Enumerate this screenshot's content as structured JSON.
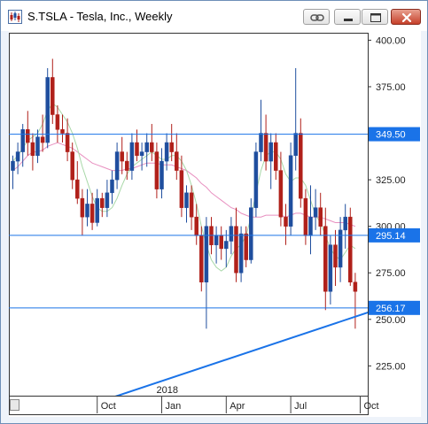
{
  "window": {
    "title": "S.TSLA - Tesla, Inc., Weekly",
    "icons": {
      "app": "chart-app-icon",
      "link": "link-icon",
      "minimize": "minimize-icon",
      "maximize": "maximize-icon",
      "close": "close-icon"
    }
  },
  "chart_data": {
    "type": "candlestick",
    "title": "",
    "xlabel": "",
    "ylabel": "",
    "ylim": [
      209,
      404
    ],
    "y_ticks": [
      "400.00",
      "375.00",
      "350.00",
      "325.00",
      "300.00",
      "275.00",
      "250.00",
      "225.00"
    ],
    "x_ticks": [
      {
        "label": "Oct",
        "week": 17
      },
      {
        "label": "Jan",
        "week": 30
      },
      {
        "label": "Apr",
        "week": 43
      },
      {
        "label": "Jul",
        "week": 56
      },
      {
        "label": "Oct",
        "week": 70
      }
    ],
    "year_label": {
      "label": "2018",
      "week": 30
    },
    "horizontal_lines": [
      {
        "value": 349.5,
        "label": "349.50"
      },
      {
        "value": 295.14,
        "label": "295.14"
      },
      {
        "value": 256.17,
        "label": "256.17"
      }
    ],
    "trendline": {
      "from": {
        "week": 11,
        "value": 200
      },
      "to": {
        "week": 73,
        "value": 255
      }
    },
    "colors": {
      "up": "#1f4e9e",
      "down": "#b0201a",
      "level_line": "#1a73e8",
      "trendline": "#1a73e8",
      "ma_slow": "#e890c0",
      "ma_fast": "#a8d8a8",
      "label_bg": "#1a73e8"
    },
    "candles": [
      [
        330,
        338,
        320,
        335
      ],
      [
        335,
        345,
        328,
        340
      ],
      [
        340,
        355,
        332,
        352
      ],
      [
        352,
        362,
        338,
        345
      ],
      [
        345,
        350,
        330,
        338
      ],
      [
        338,
        352,
        334,
        348
      ],
      [
        348,
        360,
        340,
        345
      ],
      [
        345,
        385,
        342,
        380
      ],
      [
        380,
        390,
        355,
        360
      ],
      [
        360,
        365,
        345,
        352
      ],
      [
        352,
        360,
        345,
        350
      ],
      [
        350,
        358,
        335,
        340
      ],
      [
        340,
        345,
        320,
        325
      ],
      [
        325,
        335,
        312,
        315
      ],
      [
        315,
        320,
        295,
        305
      ],
      [
        305,
        320,
        300,
        312
      ],
      [
        312,
        318,
        298,
        302
      ],
      [
        302,
        320,
        300,
        315
      ],
      [
        315,
        318,
        305,
        310
      ],
      [
        310,
        325,
        305,
        318
      ],
      [
        318,
        330,
        312,
        325
      ],
      [
        325,
        345,
        320,
        340
      ],
      [
        340,
        348,
        328,
        335
      ],
      [
        335,
        340,
        325,
        330
      ],
      [
        330,
        350,
        325,
        345
      ],
      [
        345,
        352,
        335,
        338
      ],
      [
        338,
        345,
        330,
        340
      ],
      [
        340,
        350,
        332,
        345
      ],
      [
        345,
        355,
        335,
        340
      ],
      [
        340,
        345,
        315,
        320
      ],
      [
        320,
        342,
        315,
        335
      ],
      [
        335,
        350,
        330,
        345
      ],
      [
        345,
        355,
        335,
        340
      ],
      [
        340,
        350,
        325,
        330
      ],
      [
        330,
        338,
        305,
        310
      ],
      [
        310,
        322,
        302,
        318
      ],
      [
        318,
        322,
        298,
        305
      ],
      [
        305,
        312,
        290,
        295
      ],
      [
        295,
        300,
        265,
        270
      ],
      [
        270,
        305,
        245,
        300
      ],
      [
        300,
        305,
        285,
        290
      ],
      [
        290,
        300,
        280,
        295
      ],
      [
        295,
        300,
        282,
        288
      ],
      [
        288,
        298,
        278,
        292
      ],
      [
        292,
        305,
        285,
        300
      ],
      [
        300,
        310,
        270,
        275
      ],
      [
        275,
        300,
        270,
        296
      ],
      [
        296,
        300,
        278,
        282
      ],
      [
        282,
        315,
        280,
        310
      ],
      [
        310,
        345,
        305,
        340
      ],
      [
        340,
        368,
        335,
        350
      ],
      [
        350,
        360,
        330,
        335
      ],
      [
        335,
        350,
        320,
        345
      ],
      [
        345,
        350,
        325,
        330
      ],
      [
        330,
        340,
        300,
        305
      ],
      [
        305,
        312,
        290,
        300
      ],
      [
        300,
        345,
        295,
        338
      ],
      [
        338,
        385,
        330,
        350
      ],
      [
        350,
        358,
        310,
        315
      ],
      [
        315,
        320,
        290,
        295
      ],
      [
        295,
        322,
        285,
        305
      ],
      [
        305,
        320,
        298,
        310
      ],
      [
        310,
        318,
        295,
        300
      ],
      [
        300,
        310,
        255,
        265
      ],
      [
        265,
        295,
        258,
        290
      ],
      [
        290,
        298,
        268,
        278
      ],
      [
        278,
        305,
        270,
        298
      ],
      [
        298,
        312,
        288,
        305
      ],
      [
        305,
        310,
        268,
        270
      ],
      [
        270,
        275,
        245,
        265
      ]
    ],
    "moving_average_slow": [
      330,
      332,
      335,
      338,
      340,
      340,
      341,
      343,
      344,
      345,
      344,
      343,
      342,
      340,
      338,
      336,
      334,
      333,
      332,
      331,
      330,
      330,
      330,
      331,
      331,
      332,
      333,
      334,
      334,
      334,
      333,
      333,
      333,
      332,
      331,
      330,
      328,
      326,
      323,
      321,
      318,
      316,
      314,
      312,
      310,
      309,
      307,
      306,
      305,
      305,
      305,
      306,
      306,
      306,
      306,
      305,
      306,
      307,
      307,
      306,
      305,
      305,
      305,
      304,
      303,
      302,
      302,
      302,
      301,
      300
    ],
    "moving_average_fast": [
      335,
      338,
      342,
      346,
      348,
      350,
      355,
      362,
      366,
      364,
      360,
      356,
      350,
      342,
      332,
      324,
      316,
      310,
      308,
      308,
      310,
      315,
      322,
      328,
      332,
      334,
      336,
      338,
      340,
      338,
      336,
      336,
      338,
      338,
      335,
      330,
      322,
      312,
      300,
      290,
      282,
      278,
      276,
      278,
      284,
      288,
      290,
      295,
      305,
      318,
      330,
      338,
      340,
      340,
      336,
      328,
      324,
      326,
      326,
      322,
      314,
      306,
      302,
      295,
      288,
      284,
      282,
      286,
      290,
      288
    ]
  }
}
